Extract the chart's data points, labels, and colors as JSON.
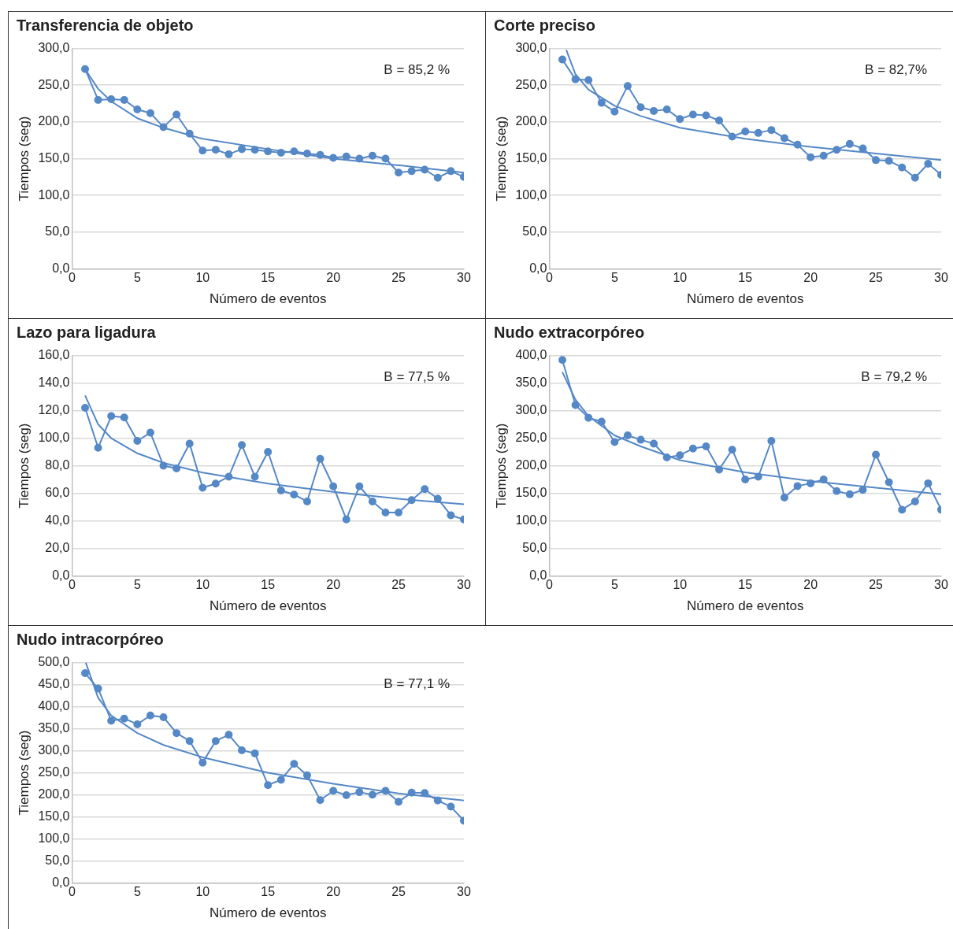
{
  "chart_data": [
    {
      "type": "line",
      "title": "Transferencia de objeto",
      "xlabel": "Número de eventos",
      "ylabel": "Tiempos (seg)",
      "xlim": [
        0,
        30
      ],
      "xticks": [
        0,
        5,
        10,
        15,
        20,
        25,
        30
      ],
      "ylim": [
        0,
        300
      ],
      "yticks": [
        {
          "value": 0,
          "label": "0,0"
        },
        {
          "value": 50,
          "label": "50,0"
        },
        {
          "value": 100,
          "label": "100,0"
        },
        {
          "value": 150,
          "label": "150,0"
        },
        {
          "value": 200,
          "label": "200,0"
        },
        {
          "value": 250,
          "label": "250,0"
        },
        {
          "value": 300,
          "label": "300,0"
        }
      ],
      "grid": "y",
      "marker": "circle",
      "annotations": [
        "B = 85,2 %"
      ],
      "series": [
        {
          "color": "#5588c6",
          "x": [
            1,
            2,
            3,
            4,
            5,
            6,
            7,
            8,
            9,
            10,
            11,
            12,
            13,
            14,
            15,
            16,
            17,
            18,
            19,
            20,
            21,
            22,
            23,
            24,
            25,
            26,
            27,
            28,
            29,
            30
          ],
          "values": [
            272,
            230,
            231,
            230,
            217,
            212,
            193,
            210,
            184,
            161,
            162,
            156,
            163,
            162,
            160,
            158,
            160,
            157,
            155,
            151,
            153,
            150,
            154,
            150,
            131,
            133,
            135,
            124,
            133,
            125
          ]
        },
        {
          "type": "line",
          "marker": "none",
          "color": "#5588c6",
          "x": [
            1,
            2,
            3,
            5,
            7,
            10,
            15,
            20,
            25,
            30
          ],
          "values": [
            272,
            245,
            228,
            205,
            192,
            177,
            163,
            150,
            141,
            131
          ]
        }
      ]
    },
    {
      "type": "line",
      "title": "Corte preciso",
      "xlabel": "Número de eventos",
      "ylabel": "Tiempos (seg)",
      "xlim": [
        0,
        30
      ],
      "xticks": [
        0,
        5,
        10,
        15,
        20,
        25,
        30
      ],
      "ylim": [
        0,
        300
      ],
      "yticks": [
        {
          "value": 0,
          "label": "0,0"
        },
        {
          "value": 50,
          "label": "50,0"
        },
        {
          "value": 100,
          "label": "100,0"
        },
        {
          "value": 150,
          "label": "150,0"
        },
        {
          "value": 200,
          "label": "200,0"
        },
        {
          "value": 250,
          "label": "250,0"
        },
        {
          "value": 300,
          "label": "300,0"
        }
      ],
      "grid": "y",
      "marker": "circle",
      "annotations": [
        "B = 82,7%"
      ],
      "series": [
        {
          "color": "#5588c6",
          "x": [
            1,
            2,
            3,
            4,
            5,
            6,
            7,
            8,
            9,
            10,
            11,
            12,
            13,
            14,
            15,
            16,
            17,
            18,
            19,
            20,
            21,
            22,
            23,
            24,
            25,
            26,
            27,
            28,
            29,
            30
          ],
          "values": [
            285,
            258,
            257,
            226,
            214,
            249,
            220,
            215,
            217,
            204,
            210,
            209,
            202,
            180,
            187,
            185,
            189,
            178,
            169,
            152,
            154,
            162,
            170,
            164,
            148,
            147,
            138,
            124,
            143,
            128
          ]
        },
        {
          "type": "line",
          "marker": "none",
          "color": "#5588c6",
          "x": [
            1.3,
            2,
            3,
            5,
            7,
            10,
            15,
            20,
            25,
            30
          ],
          "values": [
            298,
            265,
            244,
            222,
            208,
            192,
            177,
            166,
            157,
            148
          ]
        }
      ]
    },
    {
      "type": "line",
      "title": "Lazo para ligadura",
      "xlabel": "Número de eventos",
      "ylabel": "Tiempos (seg)",
      "xlim": [
        0,
        30
      ],
      "xticks": [
        0,
        5,
        10,
        15,
        20,
        25,
        30
      ],
      "ylim": [
        0,
        160
      ],
      "yticks": [
        {
          "value": 0,
          "label": "0,0"
        },
        {
          "value": 20,
          "label": "20,0"
        },
        {
          "value": 40,
          "label": "40,0"
        },
        {
          "value": 60,
          "label": "60,0"
        },
        {
          "value": 80,
          "label": "80,0"
        },
        {
          "value": 100,
          "label": "100,0"
        },
        {
          "value": 120,
          "label": "120,0"
        },
        {
          "value": 140,
          "label": "140,0"
        },
        {
          "value": 160,
          "label": "160,0"
        }
      ],
      "grid": "y",
      "marker": "circle",
      "annotations": [
        "B = 77,5 %"
      ],
      "series": [
        {
          "color": "#5588c6",
          "x": [
            1,
            2,
            3,
            4,
            5,
            6,
            7,
            8,
            9,
            10,
            11,
            12,
            13,
            14,
            15,
            16,
            17,
            18,
            19,
            20,
            21,
            22,
            23,
            24,
            25,
            26,
            27,
            28,
            29,
            30
          ],
          "values": [
            122,
            93,
            116,
            115,
            98,
            104,
            80,
            78,
            96,
            64,
            67,
            72,
            95,
            72,
            90,
            62,
            59,
            54,
            85,
            65,
            41,
            65,
            54,
            46,
            46,
            55,
            63,
            56,
            44,
            41
          ]
        },
        {
          "type": "line",
          "marker": "none",
          "color": "#5588c6",
          "x": [
            1,
            2,
            3,
            5,
            7,
            10,
            15,
            20,
            25,
            30
          ],
          "values": [
            131,
            110,
            100,
            89,
            82,
            75,
            67,
            61,
            56,
            52
          ]
        }
      ]
    },
    {
      "type": "line",
      "title": "Nudo extracorpóreo",
      "xlabel": "Número de eventos",
      "ylabel": "Tiempos (seg)",
      "xlim": [
        0,
        30
      ],
      "xticks": [
        0,
        5,
        10,
        15,
        20,
        25,
        30
      ],
      "ylim": [
        0,
        400
      ],
      "yticks": [
        {
          "value": 0,
          "label": "0,0"
        },
        {
          "value": 50,
          "label": "50,0"
        },
        {
          "value": 100,
          "label": "100,0"
        },
        {
          "value": 150,
          "label": "150,0"
        },
        {
          "value": 200,
          "label": "200,0"
        },
        {
          "value": 250,
          "label": "250,0"
        },
        {
          "value": 300,
          "label": "300,0"
        },
        {
          "value": 350,
          "label": "350,0"
        },
        {
          "value": 400,
          "label": "400,0"
        }
      ],
      "grid": "y",
      "marker": "circle",
      "annotations": [
        "B = 79,2 %"
      ],
      "series": [
        {
          "color": "#5588c6",
          "x": [
            1,
            2,
            3,
            4,
            5,
            6,
            7,
            8,
            9,
            10,
            11,
            12,
            13,
            14,
            15,
            16,
            17,
            18,
            19,
            20,
            21,
            22,
            23,
            24,
            25,
            26,
            27,
            28,
            29,
            30
          ],
          "values": [
            392,
            310,
            287,
            280,
            243,
            255,
            247,
            240,
            215,
            219,
            231,
            235,
            193,
            229,
            175,
            180,
            245,
            142,
            163,
            168,
            175,
            154,
            148,
            156,
            220,
            170,
            120,
            135,
            168,
            120
          ]
        },
        {
          "type": "line",
          "marker": "none",
          "color": "#5588c6",
          "x": [
            1,
            2,
            3,
            5,
            7,
            10,
            15,
            20,
            25,
            30
          ],
          "values": [
            370,
            320,
            290,
            255,
            235,
            210,
            188,
            172,
            160,
            148
          ]
        }
      ]
    },
    {
      "type": "line",
      "title": "Nudo intracorpóreo",
      "xlabel": "Número de eventos",
      "ylabel": "Tiempos (seg)",
      "xlim": [
        0,
        30
      ],
      "xticks": [
        0,
        5,
        10,
        15,
        20,
        25,
        30
      ],
      "ylim": [
        0,
        500
      ],
      "yticks": [
        {
          "value": 0,
          "label": "0,0"
        },
        {
          "value": 50,
          "label": "50,0"
        },
        {
          "value": 100,
          "label": "100,0"
        },
        {
          "value": 150,
          "label": "150,0"
        },
        {
          "value": 200,
          "label": "200,0"
        },
        {
          "value": 250,
          "label": "250,0"
        },
        {
          "value": 300,
          "label": "300,0"
        },
        {
          "value": 350,
          "label": "350,0"
        },
        {
          "value": 400,
          "label": "400,0"
        },
        {
          "value": 450,
          "label": "450,0"
        },
        {
          "value": 500,
          "label": "500,0"
        }
      ],
      "grid": "y",
      "marker": "circle",
      "annotations": [
        "B = 77,1 %"
      ],
      "series": [
        {
          "color": "#5588c6",
          "x": [
            1,
            2,
            3,
            4,
            5,
            6,
            7,
            8,
            9,
            10,
            11,
            12,
            13,
            14,
            15,
            16,
            17,
            18,
            19,
            20,
            21,
            22,
            23,
            24,
            25,
            26,
            27,
            28,
            29,
            30
          ],
          "values": [
            476,
            441,
            368,
            373,
            360,
            380,
            376,
            340,
            322,
            273,
            322,
            336,
            301,
            294,
            222,
            234,
            270,
            244,
            188,
            209,
            199,
            206,
            200,
            209,
            184,
            205,
            204,
            187,
            173,
            141
          ]
        },
        {
          "type": "line",
          "marker": "none",
          "color": "#5588c6",
          "x": [
            1.05,
            2,
            3,
            5,
            7,
            10,
            15,
            20,
            25,
            30
          ],
          "values": [
            500,
            420,
            380,
            340,
            313,
            285,
            250,
            225,
            203,
            187
          ]
        }
      ]
    }
  ]
}
